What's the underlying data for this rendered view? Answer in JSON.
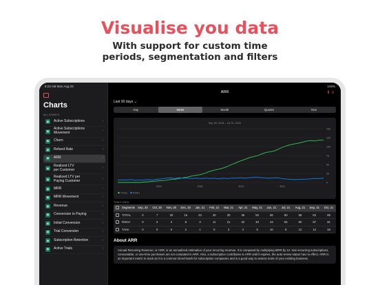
{
  "promo": {
    "title": "Visualise you data",
    "subtitle_line1": "With support for custom time",
    "subtitle_line2": "periods, segmentation and filters"
  },
  "statusbar": {
    "time": "8:23 AM   Mon Aug 29",
    "battery": "100%"
  },
  "sidebar": {
    "title": "Charts",
    "section": "ALL CHARTS",
    "items": [
      {
        "label": "Active Subscriptions",
        "label2": ""
      },
      {
        "label": "Active Subscriptions",
        "label2": "Movement"
      },
      {
        "label": "Churn",
        "label2": ""
      },
      {
        "label": "Refund Rate",
        "label2": ""
      },
      {
        "label": "ARR",
        "label2": ""
      },
      {
        "label": "Realized LTV",
        "label2": "per Customer"
      },
      {
        "label": "Realized LTV per",
        "label2": "Paying Customer"
      },
      {
        "label": "MRR",
        "label2": ""
      },
      {
        "label": "MRR Movement",
        "label2": ""
      },
      {
        "label": "Revenue",
        "label2": ""
      },
      {
        "label": "Conversion to Paying",
        "label2": ""
      },
      {
        "label": "Initial Conversion",
        "label2": ""
      },
      {
        "label": "Trial Conversion",
        "label2": ""
      },
      {
        "label": "Subscription Retention",
        "label2": ""
      },
      {
        "label": "Active Trials",
        "label2": ""
      }
    ]
  },
  "main": {
    "nav_title": "ARR",
    "period": "Last 90 days ⌄",
    "segments": [
      "Day",
      "Week",
      "Month",
      "Quarter",
      "Year"
    ],
    "active_segment": "Week"
  },
  "colors": {
    "accent": "#e8505b",
    "green": "#34c759",
    "blue": "#0a84ff"
  },
  "chart_data": {
    "type": "line",
    "title": "Sep 30, 2018 – Jul 31, 2022",
    "x_ticks": [
      "2019",
      "2020",
      "2021",
      "2022"
    ],
    "y_ticks": [
      "150",
      "125",
      "100",
      "75",
      "50",
      "25",
      "0"
    ],
    "ylim": [
      0,
      150
    ],
    "legend": [
      "TOTAL",
      "ROKH"
    ],
    "series": [
      {
        "name": "TOTAL",
        "color": "#34c759",
        "values": [
          0,
          0,
          0,
          0,
          0,
          0,
          1,
          2,
          3,
          4,
          5,
          6,
          8,
          9,
          11,
          13,
          15,
          18,
          20,
          22,
          26,
          31,
          34,
          37,
          40,
          44,
          50,
          55,
          60,
          64,
          69,
          72,
          75,
          80,
          84,
          86,
          89,
          95,
          100,
          104,
          107,
          109,
          112,
          115,
          117,
          116,
          118,
          118
        ]
      },
      {
        "name": "ROKH",
        "color": "#0a84ff",
        "values": [
          7,
          7,
          7,
          8,
          6,
          7,
          7,
          8,
          7,
          9,
          10,
          12,
          13,
          11,
          13,
          12,
          12,
          11,
          12,
          11,
          12,
          11,
          12,
          10,
          12,
          11,
          12,
          12,
          13,
          12,
          13,
          14,
          14,
          13,
          12,
          12,
          13,
          12,
          10,
          9,
          8,
          8,
          9,
          9,
          10,
          11,
          11,
          12
        ]
      }
    ],
    "grid": true,
    "legend_position": "bottom-left"
  },
  "table": {
    "label": "TABLE DATA",
    "headers": [
      "Segments",
      "Sep, 20",
      "Oct, 20",
      "Nov, 20",
      "Dec, 20",
      "Jan, 21",
      "Feb, 21",
      "Mar, 21",
      "Apr, 21",
      "May, 21",
      "Jun, 21",
      "Jul, 21",
      "Aug, 21",
      "Sep, 21",
      "Oct, 21"
    ],
    "rows": [
      {
        "name": "TOTAL",
        "values": [
          "0",
          "7",
          "20",
          "16",
          "23",
          "30",
          "30",
          "36",
          "50",
          "56",
          "60",
          "58",
          "62",
          "69"
        ]
      },
      {
        "name": "ROKH",
        "values": [
          "0",
          "3",
          "2",
          "8",
          "3",
          "11",
          "21",
          "32",
          "40",
          "44",
          "55",
          "80",
          "87",
          "91"
        ]
      },
      {
        "name": "TAHe",
        "values": [
          "0",
          "0",
          "0",
          "2",
          "1",
          "0",
          "3",
          "4",
          "6",
          "10",
          "9",
          "12",
          "12",
          "18"
        ]
      }
    ]
  },
  "about": {
    "heading": "About ARR",
    "text": "Annual Recurring Revenue, or ARR, is an annualized estimation of your recurring revenue. It is computed by multiplying MRR by 12. Non-recurring subscriptions, consumable, or one-time purchases are not computed in ARR. Also, a subscription contributes to ARR until it expires, the auto-renew status has no effect. ARR is an important metric to track as it is a common benchmark for subscription companies and is a good way to assess scale of your existing business."
  }
}
